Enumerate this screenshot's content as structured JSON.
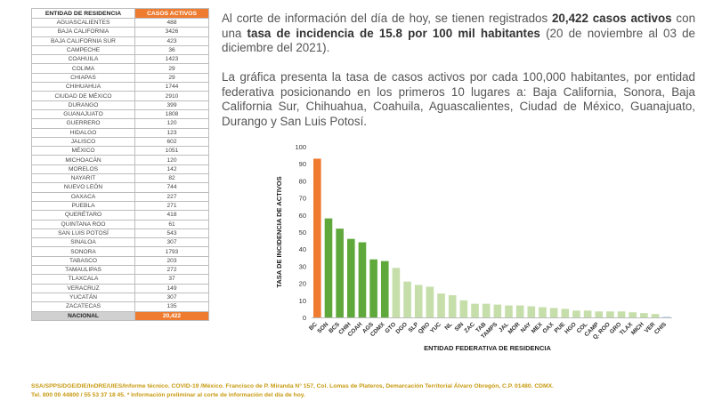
{
  "table": {
    "header_entity": "ENTIDAD DE RESIDENCIA",
    "header_cases": "CASOS ACTIVOS",
    "rows": [
      {
        "entity": "AGUASCALIENTES",
        "cases": "488"
      },
      {
        "entity": "BAJA CALIFORNIA",
        "cases": "3426"
      },
      {
        "entity": "BAJA CALIFORNIA SUR",
        "cases": "423"
      },
      {
        "entity": "CAMPECHE",
        "cases": "36"
      },
      {
        "entity": "COAHUILA",
        "cases": "1423"
      },
      {
        "entity": "COLIMA",
        "cases": "29"
      },
      {
        "entity": "CHIAPAS",
        "cases": "29"
      },
      {
        "entity": "CHIHUAHUA",
        "cases": "1744"
      },
      {
        "entity": "CIUDAD DE MÉXICO",
        "cases": "2910"
      },
      {
        "entity": "DURANGO",
        "cases": "399"
      },
      {
        "entity": "GUANAJUATO",
        "cases": "1808"
      },
      {
        "entity": "GUERRERO",
        "cases": "120"
      },
      {
        "entity": "HIDALGO",
        "cases": "123"
      },
      {
        "entity": "JALISCO",
        "cases": "602"
      },
      {
        "entity": "MÉXICO",
        "cases": "1051"
      },
      {
        "entity": "MICHOACÁN",
        "cases": "120"
      },
      {
        "entity": "MORELOS",
        "cases": "142"
      },
      {
        "entity": "NAYARIT",
        "cases": "82"
      },
      {
        "entity": "NUEVO LEÓN",
        "cases": "744"
      },
      {
        "entity": "OAXACA",
        "cases": "227"
      },
      {
        "entity": "PUEBLA",
        "cases": "271"
      },
      {
        "entity": "QUERÉTARO",
        "cases": "418"
      },
      {
        "entity": "QUINTANA ROO",
        "cases": "61"
      },
      {
        "entity": "SAN LUIS POTOSÍ",
        "cases": "543"
      },
      {
        "entity": "SINALOA",
        "cases": "307"
      },
      {
        "entity": "SONORA",
        "cases": "1793"
      },
      {
        "entity": "TABASCO",
        "cases": "203"
      },
      {
        "entity": "TAMAULIPAS",
        "cases": "272"
      },
      {
        "entity": "TLAXCALA",
        "cases": "37"
      },
      {
        "entity": "VERACRUZ",
        "cases": "149"
      },
      {
        "entity": "YUCATÁN",
        "cases": "307"
      },
      {
        "entity": "ZACATECAS",
        "cases": "135"
      }
    ],
    "total_entity": "NACIONAL",
    "total_cases": "20,422"
  },
  "para1": {
    "t1": "Al corte de información del día de hoy, se tienen registrados ",
    "b1": "20,422 casos activos",
    "t2": " con una ",
    "b2": "tasa de incidencia de 15.8 por 100 mil habitantes",
    "t3": " (20 de noviembre al 03 de diciembre del 2021)."
  },
  "para2": "La gráfica presenta la tasa de casos activos por cada 100,000 habitantes, por entidad federativa posicionando en los primeros 10 lugares a: Baja California, Sonora, Baja California Sur, Chihuahua, Coahuila, Aguascalientes, Ciudad de México, Guanajuato, Durango y San Luis Potosí.",
  "footnote": {
    "line1": "SSA/SPPS/DGE/DIE/InDRE/UIES/Informe técnico. COVID-19 /México. Francisco de P. Miranda N° 157, Col. Lomas de Plateros, Demarcación Territorial Álvaro Obregón, C.P. 01480. CDMX.",
    "line2": "Tel. 800 00 44800 / 55 53 37 18 45. * Información preliminar al corte de información del día de hoy."
  },
  "colors": {
    "orange": "#ee7b2f",
    "dark_green": "#5fa83c",
    "light_green": "#c5deaa",
    "light_blue": "#bcd7ee",
    "footnote": "#c89a12"
  },
  "chart_data": {
    "type": "bar",
    "xlabel": "ENTIDAD FEDERATIVA DE RESIDENCIA",
    "ylabel": "TASA DE INCIDENCIA DE ACTIVOS",
    "ylim": [
      0,
      100
    ],
    "yticks": [
      0,
      10,
      20,
      30,
      40,
      50,
      60,
      70,
      80,
      90,
      100
    ],
    "grid": false,
    "categories": [
      "BC",
      "SON",
      "BCS",
      "CHIH",
      "COAH",
      "AGS",
      "CDMX",
      "GTO",
      "DGO",
      "SLP",
      "QRO",
      "YUC",
      "NL",
      "SIN",
      "ZAC",
      "TAB",
      "TAMPS",
      "JAL",
      "MOR",
      "NAY",
      "MEX",
      "OAX",
      "PUE",
      "HGO",
      "COL",
      "CAMP",
      "Q. ROO",
      "GRO",
      "TLAX",
      "MICH",
      "VER",
      "CHIS"
    ],
    "values": [
      93,
      58,
      52,
      46,
      44,
      34,
      33,
      29,
      21,
      19,
      18,
      14,
      13,
      10,
      8,
      8,
      7.5,
      7,
      7,
      6.5,
      6,
      5.5,
      5,
      4,
      4,
      3.5,
      3.5,
      3.5,
      3,
      2.5,
      2,
      0.5
    ],
    "bar_groups": [
      "orange",
      "dark_green",
      "dark_green",
      "dark_green",
      "dark_green",
      "dark_green",
      "dark_green",
      "light_green",
      "light_green",
      "light_green",
      "light_green",
      "light_green",
      "light_green",
      "light_green",
      "light_green",
      "light_green",
      "light_green",
      "light_green",
      "light_green",
      "light_green",
      "light_green",
      "light_green",
      "light_green",
      "light_green",
      "light_green",
      "light_green",
      "light_green",
      "light_green",
      "light_green",
      "light_green",
      "light_green",
      "light_blue"
    ]
  }
}
